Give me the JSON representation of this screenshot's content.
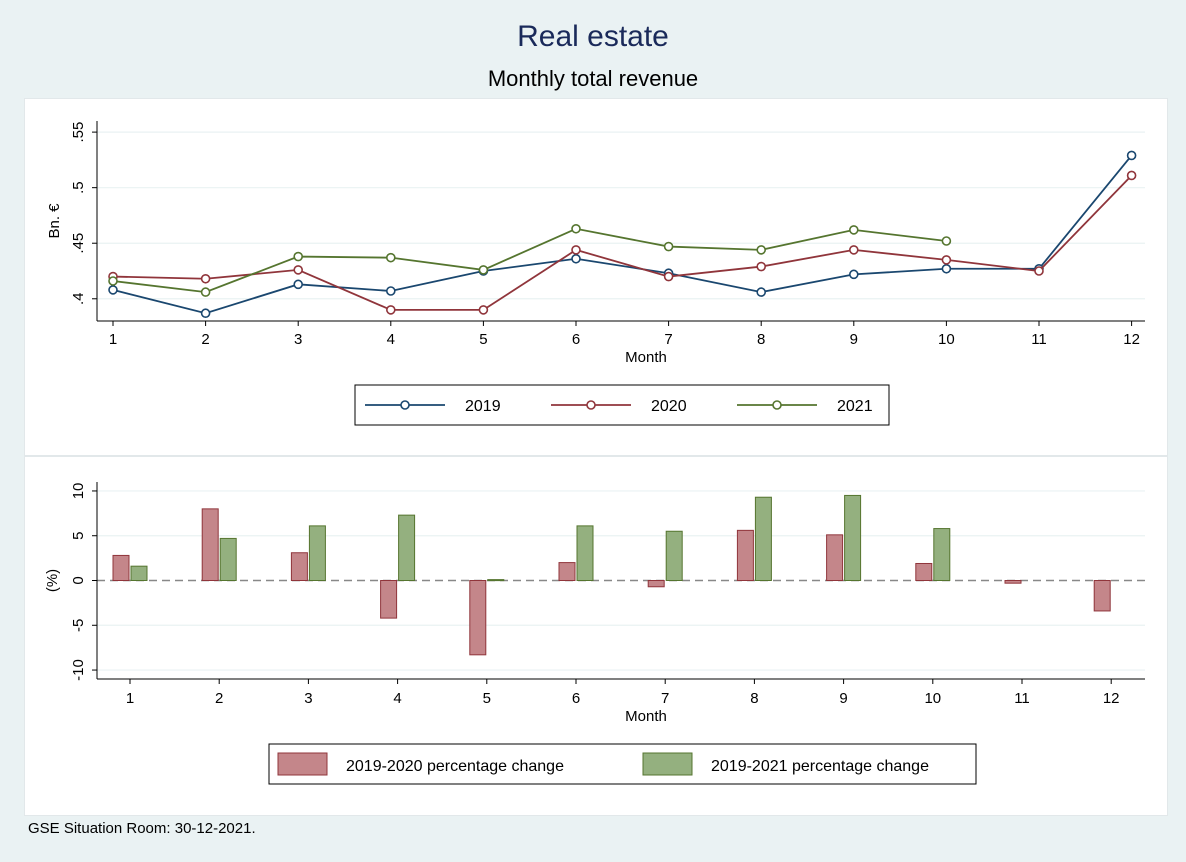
{
  "title": "Real estate",
  "subtitle": "Monthly total revenue",
  "note": "GSE Situation Room: 30-12-2021.",
  "chart_data": [
    {
      "type": "line",
      "x": [
        1,
        2,
        3,
        4,
        5,
        6,
        7,
        8,
        9,
        10,
        11,
        12
      ],
      "xlabel": "Month",
      "ylabel": "Bn. €",
      "ylim": [
        0.38,
        0.56
      ],
      "yticks": [
        ".4",
        ".45",
        ".5",
        ".55"
      ],
      "ytick_values": [
        0.4,
        0.45,
        0.5,
        0.55
      ],
      "grid": true,
      "legend_position": "bottom",
      "series": [
        {
          "name": "2019",
          "color": "#1a476f",
          "values": [
            0.408,
            0.387,
            0.413,
            0.407,
            0.425,
            0.436,
            0.423,
            0.406,
            0.422,
            0.427,
            0.427,
            0.529
          ]
        },
        {
          "name": "2020",
          "color": "#90353b",
          "values": [
            0.42,
            0.418,
            0.426,
            0.39,
            0.39,
            0.444,
            0.42,
            0.429,
            0.444,
            0.435,
            0.425,
            0.511
          ]
        },
        {
          "name": "2021",
          "color": "#55752f",
          "values": [
            0.416,
            0.406,
            0.438,
            0.437,
            0.426,
            0.463,
            0.447,
            0.444,
            0.462,
            0.452,
            null,
            null
          ]
        }
      ]
    },
    {
      "type": "bar",
      "categories": [
        "1",
        "2",
        "3",
        "4",
        "5",
        "6",
        "7",
        "8",
        "9",
        "10",
        "11",
        "12"
      ],
      "xlabel": "Month",
      "ylabel": "(%)",
      "ylim": [
        -11,
        11
      ],
      "yticks": [
        "-10",
        "-5",
        "0",
        "5",
        "10"
      ],
      "ytick_values": [
        -10,
        -5,
        0,
        5,
        10
      ],
      "grid": true,
      "legend_position": "bottom",
      "series": [
        {
          "name": "2019-2020 percentage change",
          "color": "#c4868a",
          "edge": "#90353b",
          "values": [
            2.8,
            8.0,
            3.1,
            -4.2,
            -8.3,
            2.0,
            -0.7,
            5.6,
            5.1,
            1.9,
            -0.3,
            -3.4
          ]
        },
        {
          "name": "2019-2021 percentage change",
          "color": "#94b07f",
          "edge": "#55752f",
          "values": [
            1.6,
            4.7,
            6.1,
            7.3,
            0.1,
            6.1,
            5.5,
            9.3,
            9.5,
            5.8,
            null,
            null
          ]
        }
      ]
    }
  ]
}
